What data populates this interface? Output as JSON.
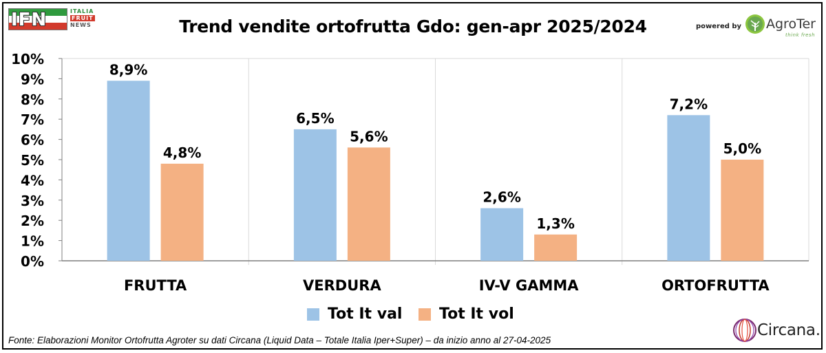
{
  "header": {
    "title": "Trend vendite ortofrutta Gdo: gen-apr 2025/2024",
    "brand_logo_text": "IFN",
    "brand_lines": [
      "ITALIA",
      "FRUIT",
      "NEWS"
    ],
    "powered_by": "powered by",
    "sponsor_name": "AgroTer",
    "sponsor_tagline": "think fresh"
  },
  "footer": {
    "source": "Fonte: Elaborazioni Monitor Ortofrutta Agroter su dati Circana (Liquid Data – Totale Italia Iper+Super) –  da inizio anno al 27-04-2025",
    "data_provider": "Circana."
  },
  "colors": {
    "val": "#9dc3e6",
    "vol": "#f4b183",
    "grid": "#d9d9d9",
    "axis": "#7f7f7f"
  },
  "chart_data": {
    "type": "bar",
    "title": "Trend vendite ortofrutta Gdo: gen-apr 2025/2024",
    "xlabel": "",
    "ylabel": "",
    "categories": [
      "FRUTTA",
      "VERDURA",
      "IV-V GAMMA",
      "ORTOFRUTTA"
    ],
    "series": [
      {
        "name": "Tot It val",
        "values": [
          8.9,
          6.5,
          2.6,
          7.2
        ],
        "labels": [
          "8,9%",
          "6,5%",
          "2,6%",
          "7,2%"
        ]
      },
      {
        "name": "Tot It  vol",
        "values": [
          4.8,
          5.6,
          1.3,
          5.0
        ],
        "labels": [
          "4,8%",
          "5,6%",
          "1,3%",
          "5,0%"
        ]
      }
    ],
    "ylim": [
      0,
      10
    ],
    "yticks": [
      "0%",
      "1%",
      "2%",
      "3%",
      "4%",
      "5%",
      "6%",
      "7%",
      "8%",
      "9%",
      "10%"
    ],
    "grid": "vertical separators between categories",
    "legend": "bottom-center"
  }
}
